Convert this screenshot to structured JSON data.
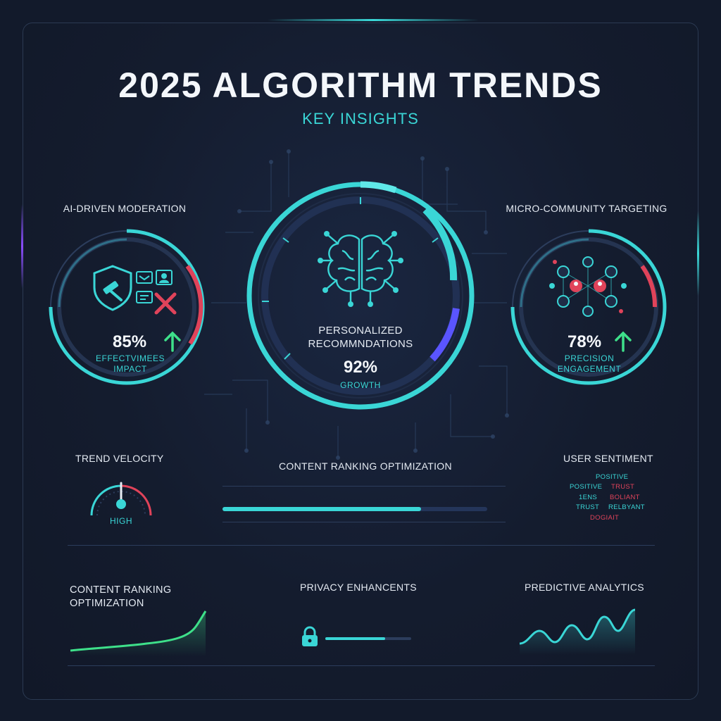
{
  "header": {
    "title": "2025 ALGORITHM TRENDS",
    "subtitle": "KEY INSIGHTS"
  },
  "colors": {
    "accent": "#3ad6d6",
    "green": "#3ee08a",
    "red": "#e0435a",
    "violet": "#5a55ff",
    "background": "#121a2b"
  },
  "moderation": {
    "label": "AI-DRIVEN MODERATION",
    "value": "85%",
    "caption_1": "EFFECTVIMEES",
    "caption_2": "IMPACT",
    "trend_icon": "arrow-up-icon"
  },
  "personalized": {
    "label_1": "PERSONALIZED",
    "label_2": "RECOMMNDATIONS",
    "value": "92%",
    "caption": "GROWTH",
    "icon": "brain-circuit-icon"
  },
  "micro": {
    "label": "MICRO-COMMUNITY TARGETING",
    "value": "78%",
    "caption_1": "PRECISION",
    "caption_2": "ENGAGEMENT",
    "trend_icon": "arrow-up-icon"
  },
  "trend_velocity": {
    "label": "TREND VELOCITY",
    "value": "HIGH"
  },
  "content_ranking_mid": {
    "label": "CONTENT RANKING OPTIMIZATION",
    "progress": 0.75
  },
  "user_sentiment": {
    "label": "USER SENTIMENT",
    "words": [
      {
        "text": "POSITIVE",
        "color": "#3ad6d6"
      },
      {
        "text": "POSITIVE",
        "color": "#3ad6d6"
      },
      {
        "text": "TRUST",
        "color": "#e0435a"
      },
      {
        "text": "1ENS",
        "color": "#3ad6d6"
      },
      {
        "text": "BOLIANT",
        "color": "#e0435a"
      },
      {
        "text": "TRUST",
        "color": "#3ad6d6"
      },
      {
        "text": "RELBYANT",
        "color": "#3ad6d6"
      },
      {
        "text": "DOGIAIT",
        "color": "#e0435a"
      }
    ]
  },
  "bottom": {
    "content_ranking_1": "CONTENT RANKING",
    "content_ranking_2": "OPTIMIZATION",
    "privacy": {
      "label": "PRIVACY ENHANCENTS",
      "progress": 0.7,
      "icon": "lock-icon"
    },
    "predictive": "PREDICTIVE ANALYTICS"
  }
}
